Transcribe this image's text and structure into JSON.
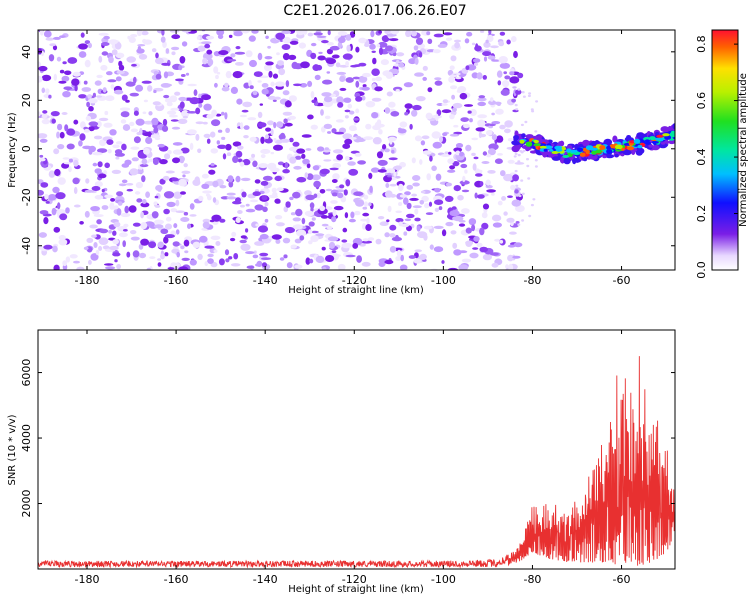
{
  "title": "C2E1.2026.017.06.26.E07",
  "colors": {
    "signal": "#e83030",
    "speckle": "#7a1ee6",
    "frame": "#000000"
  },
  "chart_data": [
    {
      "type": "heatmap",
      "xlabel": "Height of straight line (km)",
      "ylabel": "Frequency (Hz)",
      "xlim": [
        -191,
        -48
      ],
      "ylim": [
        -50,
        49
      ],
      "xticks": [
        "-180",
        "-160",
        "-140",
        "-120",
        "-100",
        "-80",
        "-60"
      ],
      "xtick_values": [
        -180,
        -160,
        -140,
        -120,
        -100,
        -80,
        -60
      ],
      "yticks": [
        "40",
        "20",
        "0",
        "-20",
        "-40"
      ],
      "ytick_values": [
        40,
        20,
        0,
        -20,
        -40
      ],
      "noise_extent_km": [
        -191,
        -84
      ],
      "signal_track": {
        "x": [
          -84,
          -80,
          -76,
          -72,
          -68,
          -64,
          -60,
          -56,
          -52,
          -48
        ],
        "freq": [
          3,
          2,
          0,
          -2,
          -1,
          0,
          1,
          2,
          4,
          6
        ]
      },
      "colorbar": {
        "label": "Normalized spectral amplitude",
        "range": [
          0.0,
          0.85
        ],
        "ticks": [
          "0.8",
          "0.6",
          "0.4",
          "0.2",
          "0.0"
        ],
        "tick_values": [
          0.8,
          0.6,
          0.4,
          0.2,
          0.0
        ]
      }
    },
    {
      "type": "line",
      "xlabel": "Height of straight line (km)",
      "ylabel": "SNR (10 * v/v)",
      "xlim": [
        -191,
        -48
      ],
      "ylim": [
        0,
        7300
      ],
      "xticks": [
        "-180",
        "-160",
        "-140",
        "-120",
        "-100",
        "-80",
        "-60"
      ],
      "xtick_values": [
        -180,
        -160,
        -140,
        -120,
        -100,
        -80,
        -60
      ],
      "yticks": [
        "6000",
        "4000",
        "2000"
      ],
      "ytick_values": [
        6000,
        4000,
        2000
      ],
      "envelope": {
        "x": [
          -191,
          -100,
          -88,
          -84,
          -82,
          -80,
          -76,
          -72,
          -68,
          -64,
          -60,
          -57,
          -55,
          -52,
          -50,
          -48
        ],
        "max": [
          250,
          250,
          300,
          600,
          1200,
          2200,
          2000,
          2300,
          2700,
          4500,
          6800,
          6200,
          7200,
          5500,
          4000,
          2500
        ],
        "min": [
          60,
          60,
          60,
          150,
          300,
          500,
          300,
          200,
          200,
          200,
          100,
          100,
          100,
          300,
          500,
          1000
        ]
      }
    }
  ]
}
